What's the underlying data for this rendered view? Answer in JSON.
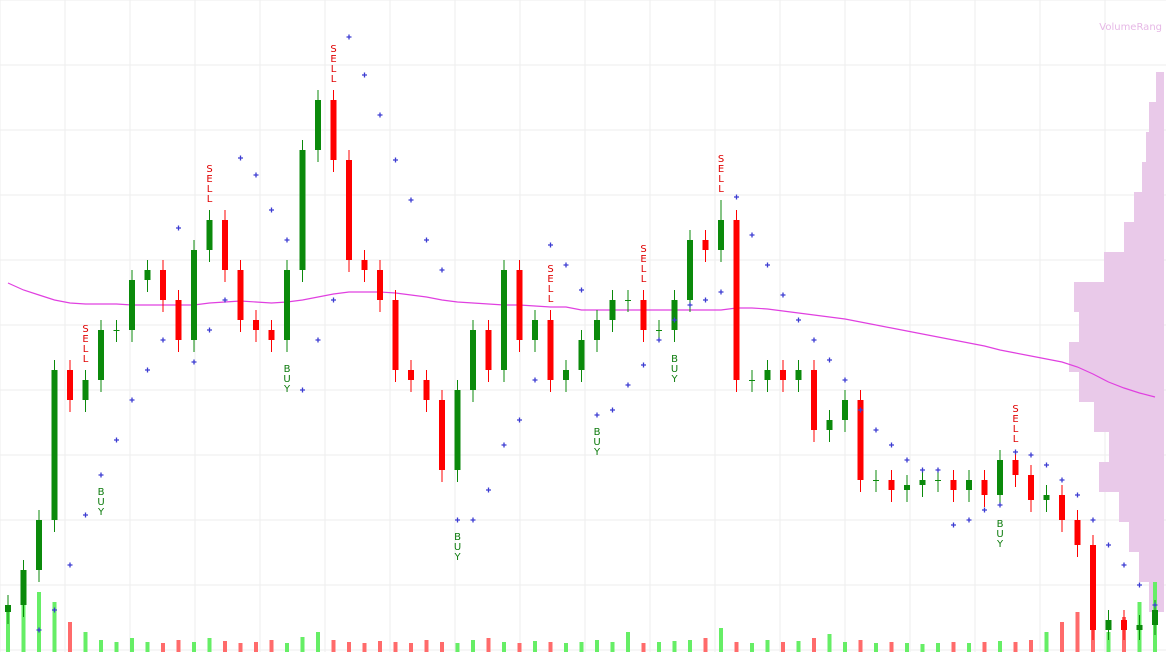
{
  "chart_data": {
    "type": "candlestick",
    "ylim": [
      0,
      652
    ],
    "grid": true,
    "up_color": "#0b8a0b",
    "down_color": "#ff0000",
    "open": [
      40,
      47,
      82,
      132,
      282,
      252,
      272,
      322,
      322,
      372,
      382,
      352,
      312,
      402,
      432,
      382,
      332,
      322,
      312,
      382,
      502,
      552,
      492,
      392,
      382,
      352,
      282,
      272,
      252,
      182,
      262,
      322,
      282,
      382,
      312,
      332,
      272,
      282,
      312,
      332,
      352,
      352,
      322,
      322,
      352,
      412,
      402,
      432,
      272,
      272,
      282,
      272,
      282,
      222,
      232,
      252,
      172,
      172,
      162,
      167,
      172,
      172,
      162,
      172,
      157,
      192,
      177,
      152,
      157,
      132,
      107,
      22,
      32,
      22,
      27
    ],
    "high": [
      57,
      92,
      142,
      292,
      292,
      282,
      332,
      332,
      382,
      392,
      392,
      362,
      412,
      442,
      442,
      392,
      342,
      332,
      392,
      512,
      562,
      562,
      502,
      402,
      392,
      362,
      292,
      282,
      262,
      272,
      332,
      332,
      392,
      392,
      342,
      342,
      292,
      322,
      342,
      362,
      362,
      362,
      332,
      362,
      422,
      422,
      452,
      442,
      282,
      292,
      292,
      292,
      292,
      242,
      262,
      262,
      182,
      182,
      177,
      182,
      182,
      182,
      182,
      182,
      202,
      202,
      187,
      167,
      167,
      142,
      117,
      42,
      42,
      37,
      52
    ],
    "low": [
      28,
      35,
      70,
      120,
      240,
      240,
      260,
      310,
      310,
      360,
      340,
      300,
      300,
      390,
      370,
      320,
      310,
      300,
      300,
      370,
      490,
      480,
      380,
      370,
      340,
      270,
      260,
      240,
      170,
      170,
      250,
      270,
      270,
      300,
      300,
      260,
      260,
      270,
      300,
      320,
      340,
      310,
      310,
      310,
      340,
      390,
      390,
      260,
      260,
      260,
      260,
      260,
      210,
      210,
      220,
      160,
      160,
      150,
      150,
      155,
      160,
      150,
      150,
      145,
      145,
      165,
      140,
      140,
      120,
      95,
      12,
      12,
      12,
      12,
      17
    ],
    "close": [
      47,
      82,
      132,
      282,
      252,
      272,
      322,
      322,
      372,
      382,
      352,
      312,
      402,
      432,
      382,
      332,
      322,
      312,
      382,
      502,
      552,
      492,
      392,
      382,
      352,
      282,
      272,
      252,
      182,
      262,
      322,
      282,
      382,
      312,
      332,
      272,
      282,
      312,
      332,
      352,
      352,
      322,
      322,
      352,
      412,
      402,
      432,
      272,
      272,
      282,
      272,
      282,
      222,
      232,
      252,
      172,
      172,
      162,
      167,
      172,
      172,
      162,
      172,
      157,
      192,
      177,
      152,
      157,
      132,
      107,
      22,
      32,
      22,
      27,
      42
    ],
    "ma": {
      "color": "#e040e0",
      "values": [
        369,
        362,
        357,
        352,
        349,
        348,
        348,
        348,
        347,
        347,
        347,
        347,
        347,
        349,
        350,
        351,
        350,
        349,
        350,
        352,
        355,
        358,
        360,
        360,
        360,
        359,
        357,
        355,
        352,
        350,
        349,
        348,
        347,
        347,
        346,
        345,
        345,
        342,
        342,
        342,
        342,
        342,
        342,
        342,
        342,
        342,
        342,
        344,
        344,
        343,
        341,
        339,
        337,
        335,
        333,
        330,
        327,
        324,
        321,
        318,
        315,
        312,
        309,
        306,
        302,
        299,
        296,
        293,
        290,
        285,
        278,
        270,
        264,
        259,
        255
      ]
    },
    "sar": {
      "color": "#3c3cd2",
      "values": [
        null,
        null,
        22,
        42,
        87,
        137,
        177,
        212,
        252,
        282,
        312,
        424,
        290,
        322,
        352,
        494,
        477,
        442,
        412,
        262,
        312,
        352,
        615,
        577,
        537,
        492,
        452,
        412,
        382,
        132,
        132,
        162,
        207,
        232,
        272,
        407,
        387,
        362,
        237,
        242,
        267,
        287,
        312,
        332,
        347,
        352,
        360,
        455,
        417,
        387,
        357,
        332,
        312,
        292,
        272,
        242,
        222,
        207,
        192,
        182,
        182,
        127,
        132,
        142,
        147,
        200,
        197,
        187,
        172,
        157,
        132,
        107,
        87,
        67,
        47
      ]
    },
    "volume": {
      "ylim": [
        0,
        100
      ],
      "up_color": "#66ee66",
      "down_color": "#ff6b6b",
      "values": [
        40,
        80,
        60,
        50,
        30,
        20,
        12,
        10,
        14,
        10,
        9,
        12,
        10,
        14,
        11,
        9,
        10,
        12,
        9,
        15,
        20,
        12,
        10,
        9,
        11,
        10,
        9,
        12,
        10,
        9,
        12,
        14,
        10,
        9,
        11,
        10,
        9,
        10,
        12,
        10,
        20,
        9,
        10,
        11,
        12,
        14,
        24,
        10,
        9,
        12,
        10,
        11,
        14,
        18,
        10,
        12,
        9,
        10,
        9,
        8,
        9,
        10,
        9,
        10,
        11,
        10,
        12,
        20,
        30,
        40,
        30,
        20,
        35,
        50,
        70
      ]
    },
    "signals": [
      {
        "text": "SELL",
        "at": 5
      },
      {
        "text": "SELL",
        "at": 13
      },
      {
        "text": "SELL",
        "at": 21
      },
      {
        "text": "SELL",
        "at": 35
      },
      {
        "text": "SELL",
        "at": 41
      },
      {
        "text": "SELL",
        "at": 46
      },
      {
        "text": "SELL",
        "at": 65
      },
      {
        "text": "BUY",
        "at": 6
      },
      {
        "text": "BUY",
        "at": 18
      },
      {
        "text": "BUY",
        "at": 29
      },
      {
        "text": "BUY",
        "at": 38
      },
      {
        "text": "BUY",
        "at": 43
      },
      {
        "text": "BUY",
        "at": 64
      }
    ],
    "volume_profile": {
      "label": "VolumeRang",
      "color": "#e9c9e9",
      "xlim": [
        0,
        150
      ],
      "bins": [
        40,
        70,
        100,
        130,
        160,
        190,
        220,
        250,
        280,
        310,
        340,
        370,
        400,
        430,
        460,
        490,
        520,
        550,
        580
      ],
      "values": [
        15,
        25,
        35,
        45,
        65,
        55,
        70,
        85,
        95,
        85,
        90,
        60,
        40,
        30,
        22,
        18,
        15,
        8
      ]
    }
  }
}
